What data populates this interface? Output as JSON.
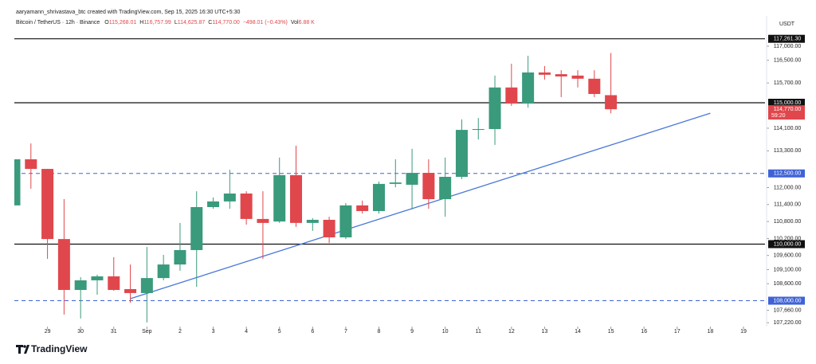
{
  "chart_data": {
    "type": "candlestick",
    "credit": "aaryamann_shrivastava_btc created with TradingView.com, Sep 15, 2025 16:30 UTC+5:30",
    "title": "Bitcoin / TetherUS · 12h · Binance",
    "header_values": [
      {
        "label": "O",
        "text": "115,268.01"
      },
      {
        "label": "H",
        "text": "116,757.99"
      },
      {
        "label": "L",
        "text": "114,625.87"
      },
      {
        "label": "C",
        "text": "114,770.00"
      },
      {
        "label": "",
        "text": "−498.01 (−0.43%)"
      },
      {
        "label": "Vol",
        "text": "6.88 K"
      }
    ],
    "currency": "USDT",
    "brand": "TradingView",
    "up_color": "#3a9a7c",
    "down_color": "#e0474c",
    "open": [
      111370,
      113000,
      112660,
      110180,
      108380,
      108720,
      108860,
      108410,
      108270,
      108800,
      109280,
      109790,
      111310,
      111510,
      111790,
      110890,
      110800,
      112440,
      110750,
      110860,
      110240,
      111370,
      111170,
      112130,
      112100,
      112520,
      111590,
      112380,
      114040,
      114070,
      115540,
      114970,
      116070,
      116010,
      115960,
      115850,
      115268.01
    ],
    "high": [
      113000,
      113560,
      112660,
      111590,
      108830,
      108920,
      109540,
      109280,
      109900,
      109620,
      110750,
      111870,
      111650,
      112630,
      111870,
      111870,
      113060,
      113480,
      110920,
      110970,
      111450,
      111540,
      112210,
      113000,
      113370,
      113000,
      113060,
      114410,
      114460,
      115960,
      116380,
      116660,
      116300,
      116150,
      116150,
      116150,
      116757.99
    ],
    "low": [
      111370,
      111960,
      109480,
      107510,
      107370,
      108210,
      108350,
      107930,
      107230,
      108720,
      109060,
      108490,
      111250,
      111250,
      110690,
      109480,
      110750,
      110610,
      110470,
      110040,
      110180,
      111080,
      111080,
      112010,
      111230,
      111250,
      110970,
      112300,
      113700,
      113510,
      114890,
      114830,
      115820,
      115200,
      115540,
      115200,
      114625.87
    ],
    "close": [
      113000,
      112660,
      110180,
      108380,
      108720,
      108860,
      108380,
      108270,
      108800,
      109280,
      109790,
      111310,
      111510,
      111790,
      110890,
      110750,
      112440,
      110750,
      110860,
      110240,
      111370,
      111170,
      112130,
      112180,
      112520,
      111590,
      112380,
      114040,
      114070,
      115540,
      114970,
      116070,
      115990,
      115930,
      115850,
      115310,
      114770
    ],
    "xlim": [
      0,
      45.3
    ],
    "ylim": [
      107085,
      117563
    ],
    "xticks": [
      {
        "value": 2,
        "label": "29"
      },
      {
        "value": 4,
        "label": "30"
      },
      {
        "value": 6,
        "label": "31"
      },
      {
        "value": 8,
        "label": "Sep"
      },
      {
        "value": 10,
        "label": "2"
      },
      {
        "value": 12,
        "label": "3"
      },
      {
        "value": 14,
        "label": "4"
      },
      {
        "value": 16,
        "label": "5"
      },
      {
        "value": 18,
        "label": "6"
      },
      {
        "value": 20,
        "label": "7"
      },
      {
        "value": 22,
        "label": "8"
      },
      {
        "value": 24,
        "label": "9"
      },
      {
        "value": 26,
        "label": "10"
      },
      {
        "value": 28,
        "label": "11"
      },
      {
        "value": 30,
        "label": "12"
      },
      {
        "value": 32,
        "label": "13"
      },
      {
        "value": 34,
        "label": "14"
      },
      {
        "value": 36,
        "label": "15"
      },
      {
        "value": 38,
        "label": "16"
      },
      {
        "value": 40,
        "label": "17"
      },
      {
        "value": 42,
        "label": "18"
      },
      {
        "value": 44,
        "label": "19"
      }
    ],
    "yticks": [
      {
        "value": 117000,
        "label": "117,000.00"
      },
      {
        "value": 116500,
        "label": "116,500.00"
      },
      {
        "value": 115700,
        "label": "115,700.00"
      },
      {
        "value": 114100,
        "label": "114,100.00"
      },
      {
        "value": 113300,
        "label": "113,300.00"
      },
      {
        "value": 112000,
        "label": "112,000.00"
      },
      {
        "value": 111400,
        "label": "111,400.00"
      },
      {
        "value": 110800,
        "label": "110,800.00"
      },
      {
        "value": 110200,
        "label": "110,200.00"
      },
      {
        "value": 109600,
        "label": "109,600.00"
      },
      {
        "value": 109100,
        "label": "109,100.00"
      },
      {
        "value": 108600,
        "label": "108,600.00"
      },
      {
        "value": 107660,
        "label": "107,660.00"
      },
      {
        "value": 107220,
        "label": "107,220.00"
      }
    ],
    "levels": [
      {
        "value": 117261.3,
        "label": "117,261.30",
        "color": "#111111",
        "style": "solid"
      },
      {
        "value": 115000,
        "label": "115,000.00",
        "color": "#111111",
        "style": "solid"
      },
      {
        "value": 112500,
        "label": "112,500.00",
        "color": "#3f63d6",
        "style": "dashed"
      },
      {
        "value": 110000,
        "label": "110,000.00",
        "color": "#111111",
        "style": "solid"
      },
      {
        "value": 108000,
        "label": "108,000.00",
        "color": "#3f63d6",
        "style": "dashed"
      }
    ],
    "last_price": {
      "value": 114770,
      "label": "114,770.00",
      "countdown": "59:20",
      "color": "#e0474c"
    },
    "trendline": {
      "x": [
        7,
        42
      ],
      "y": [
        108070,
        114630
      ],
      "color": "#4a78d8"
    }
  }
}
